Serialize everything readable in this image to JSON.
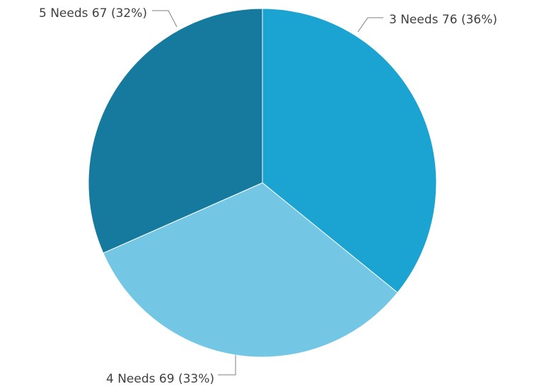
{
  "chart_data": {
    "type": "pie",
    "title": "",
    "series": [
      {
        "name": "3 Needs",
        "value": 76,
        "percent_label": "36%",
        "label": "3 Needs 76 (36%)",
        "color": "#1ba3d2"
      },
      {
        "name": "4 Needs",
        "value": 69,
        "percent_label": "33%",
        "label": "4 Needs 69 (33%)",
        "color": "#74c7e4"
      },
      {
        "name": "5 Needs",
        "value": 67,
        "percent_label": "32%",
        "label": "5 Needs 67 (32%)",
        "color": "#157a9d"
      }
    ],
    "start_angle": "12 o'clock",
    "direction": "clockwise",
    "legend": "none"
  }
}
